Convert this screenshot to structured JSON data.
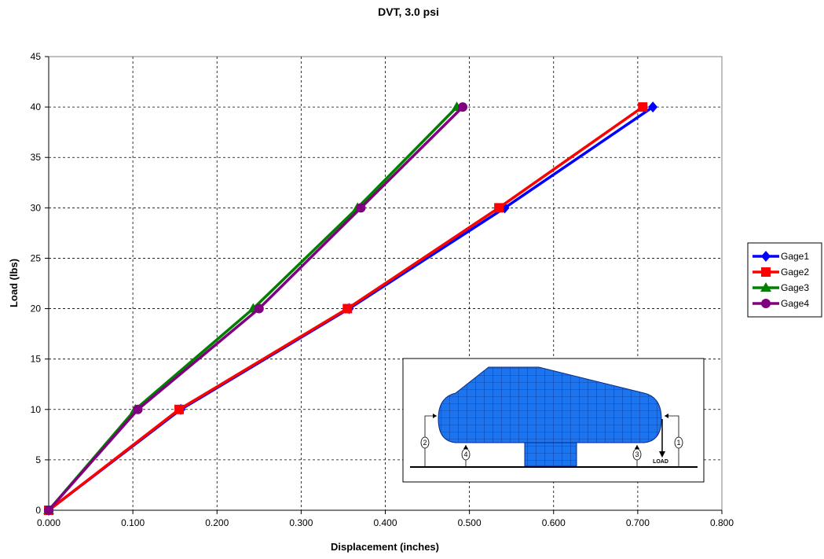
{
  "chart_data": {
    "type": "line",
    "title": "DVT, 3.0 psi",
    "xlabel": "Displacement (inches)",
    "ylabel": "Load (lbs)",
    "xlim": [
      0,
      0.8
    ],
    "ylim": [
      0,
      45
    ],
    "x_ticks": [
      "0.000",
      "0.100",
      "0.200",
      "0.300",
      "0.400",
      "0.500",
      "0.600",
      "0.700",
      "0.800"
    ],
    "y_ticks": [
      "0",
      "5",
      "10",
      "15",
      "20",
      "25",
      "30",
      "35",
      "40",
      "45"
    ],
    "grid": true,
    "legend_position": "right",
    "series": [
      {
        "name": "Gage1",
        "color": "#0000ff",
        "marker": "diamond",
        "x": [
          0.0,
          0.157,
          0.357,
          0.542,
          0.718
        ],
        "y": [
          0,
          10,
          20,
          30,
          40
        ]
      },
      {
        "name": "Gage2",
        "color": "#ff0000",
        "marker": "square",
        "x": [
          0.0,
          0.155,
          0.355,
          0.535,
          0.706
        ],
        "y": [
          0,
          10,
          20,
          30,
          40
        ]
      },
      {
        "name": "Gage3",
        "color": "#008000",
        "marker": "triangle",
        "x": [
          0.0,
          0.103,
          0.243,
          0.367,
          0.485
        ],
        "y": [
          0,
          10,
          20,
          30,
          40
        ]
      },
      {
        "name": "Gage4",
        "color": "#800080",
        "marker": "circle",
        "x": [
          0.0,
          0.106,
          0.25,
          0.371,
          0.492
        ],
        "y": [
          0,
          10,
          20,
          30,
          40
        ]
      }
    ],
    "inset": {
      "gage_labels": [
        "1",
        "2",
        "3",
        "4"
      ],
      "load_label": "LOAD"
    }
  }
}
